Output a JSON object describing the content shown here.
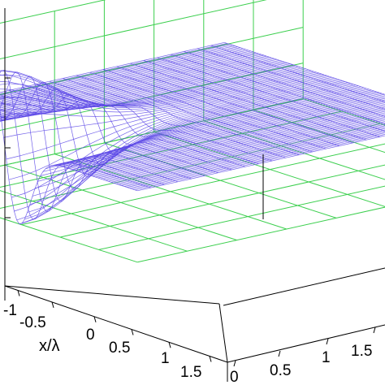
{
  "chart_data": {
    "type": "surface",
    "xlabel": "x/λ",
    "x_tick_labels": [
      "-1",
      "-0.5",
      "0",
      "0.5",
      "1",
      "1.5"
    ],
    "y_tick_labels": [
      "0",
      "0.5",
      "1",
      "1.5"
    ],
    "xlim": [
      -1.25,
      1.6
    ],
    "ylim": [
      0,
      1.6
    ],
    "surface": {
      "function": "odd-gaussian-pulse",
      "amplitude": 1.0,
      "center_x": 0.0,
      "width_x": 0.18,
      "center_y": 0.0,
      "width_y": 0.35
    },
    "grid": true,
    "colors": {
      "mesh": "#5a46e6",
      "grid": "#3ccf4e",
      "axis": "#000000"
    }
  }
}
